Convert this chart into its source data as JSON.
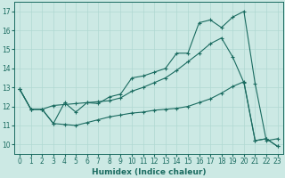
{
  "title": "",
  "xlabel": "Humidex (Indice chaleur)",
  "bg_color": "#cce9e4",
  "line_color": "#1a6b60",
  "grid_color": "#b0d8d2",
  "xlim": [
    -0.5,
    23.5
  ],
  "ylim": [
    9.5,
    17.5
  ],
  "yticks": [
    10,
    11,
    12,
    13,
    14,
    15,
    16,
    17
  ],
  "xticks": [
    0,
    1,
    2,
    3,
    4,
    5,
    6,
    7,
    8,
    9,
    10,
    11,
    12,
    13,
    14,
    15,
    16,
    17,
    18,
    19,
    20,
    21,
    22,
    23
  ],
  "line1_x": [
    0,
    1,
    2,
    3,
    4,
    5,
    6,
    7,
    8,
    9,
    10,
    11,
    12,
    13,
    14,
    15,
    16,
    17,
    18,
    19,
    20,
    21,
    22,
    23
  ],
  "line1_y": [
    12.9,
    11.85,
    11.85,
    11.1,
    12.2,
    11.7,
    12.2,
    12.15,
    12.5,
    12.65,
    13.5,
    13.6,
    13.8,
    14.0,
    14.8,
    14.8,
    16.4,
    16.55,
    16.15,
    16.7,
    17.0,
    13.2,
    10.2,
    10.3
  ],
  "line2_x": [
    0,
    1,
    2,
    3,
    4,
    5,
    6,
    7,
    8,
    9,
    10,
    11,
    12,
    13,
    14,
    15,
    16,
    17,
    18,
    19,
    20,
    21,
    22,
    23
  ],
  "line2_y": [
    12.9,
    11.85,
    11.85,
    11.1,
    11.05,
    11.0,
    11.15,
    11.3,
    11.45,
    11.55,
    11.65,
    11.7,
    11.8,
    11.85,
    11.9,
    12.0,
    12.2,
    12.4,
    12.7,
    13.05,
    13.3,
    10.2,
    10.3,
    9.9
  ],
  "line3_x": [
    0,
    1,
    2,
    3,
    4,
    5,
    6,
    7,
    8,
    9,
    10,
    11,
    12,
    13,
    14,
    15,
    16,
    17,
    18,
    19,
    20,
    21,
    22,
    23
  ],
  "line3_y": [
    12.9,
    11.85,
    11.85,
    12.05,
    12.1,
    12.15,
    12.2,
    12.25,
    12.3,
    12.45,
    12.8,
    13.0,
    13.25,
    13.5,
    13.9,
    14.35,
    14.8,
    15.3,
    15.6,
    14.6,
    13.25,
    10.2,
    10.3,
    9.9
  ],
  "tick_fontsize": 5.5,
  "xlabel_fontsize": 6.5
}
